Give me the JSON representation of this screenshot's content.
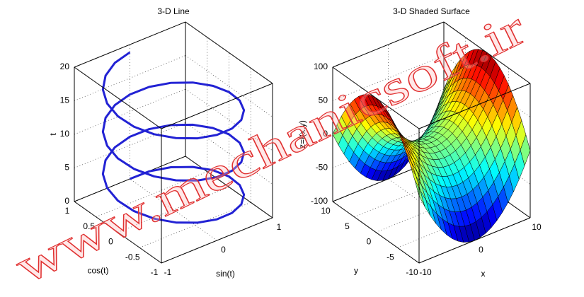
{
  "watermark": "www.mechanicsoft.ir",
  "chart_data": [
    {
      "type": "line3d",
      "title": "3-D Line",
      "xlabel": "sin(t)",
      "ylabel": "cos(t)",
      "zlabel": "t",
      "xlim": [
        -1,
        1
      ],
      "ylim": [
        -1,
        1
      ],
      "zlim": [
        0,
        20
      ],
      "xticks": [
        -1,
        0,
        1
      ],
      "yticks": [
        -1,
        -0.5,
        0,
        0.5,
        1
      ],
      "zticks": [
        0,
        5,
        10,
        15,
        20
      ],
      "grid": true,
      "series": [
        {
          "color": "#2222d4",
          "x": [
            0,
            0.309,
            0.588,
            0.809,
            0.951,
            1,
            0.951,
            0.809,
            0.588,
            0.309,
            0,
            -0.309,
            -0.588,
            -0.809,
            -0.951,
            -1,
            -0.951,
            -0.809,
            -0.588,
            -0.309,
            0,
            0.309,
            0.588,
            0.809,
            0.951,
            1,
            0.951,
            0.809,
            0.588,
            0.309,
            0,
            -0.309,
            -0.588,
            -0.809,
            -0.951,
            -1,
            -0.951,
            -0.809,
            -0.588,
            -0.309,
            0,
            0.309,
            0.588,
            0.809,
            0.951,
            1,
            0.951,
            0.809,
            0.588,
            0.309,
            0,
            -0.309,
            -0.588,
            -0.809,
            -0.951,
            -1,
            -0.951,
            -0.809,
            -0.588,
            -0.309,
            0
          ],
          "y": [
            1,
            0.951,
            0.809,
            0.588,
            0.309,
            0,
            -0.309,
            -0.588,
            -0.809,
            -0.951,
            -1,
            -0.951,
            -0.809,
            -0.588,
            -0.309,
            0,
            0.309,
            0.588,
            0.809,
            0.951,
            1,
            0.951,
            0.809,
            0.588,
            0.309,
            0,
            -0.309,
            -0.588,
            -0.809,
            -0.951,
            -1,
            -0.951,
            -0.809,
            -0.588,
            -0.309,
            0,
            0.309,
            0.588,
            0.809,
            0.951,
            1,
            0.951,
            0.809,
            0.588,
            0.309,
            0,
            -0.309,
            -0.588,
            -0.809,
            -0.951,
            -1,
            -0.951,
            -0.809,
            -0.588,
            -0.309,
            0,
            0.309,
            0.588,
            0.809,
            0.951,
            1
          ],
          "z": [
            0,
            0.31,
            0.63,
            0.94,
            1.26,
            1.57,
            1.88,
            2.2,
            2.51,
            2.83,
            3.14,
            3.46,
            3.77,
            4.08,
            4.4,
            4.71,
            5.03,
            5.34,
            5.65,
            5.97,
            6.28,
            6.6,
            6.91,
            7.23,
            7.54,
            7.85,
            8.17,
            8.48,
            8.8,
            9.11,
            9.42,
            9.74,
            10.05,
            10.37,
            10.68,
            11,
            11.31,
            11.62,
            11.94,
            12.25,
            12.57,
            12.88,
            13.19,
            13.51,
            13.82,
            14.14,
            14.45,
            14.77,
            15.08,
            15.39,
            15.71,
            16.02,
            16.34,
            16.65,
            16.96,
            17.28,
            17.59,
            17.91,
            18.22,
            18.54,
            18.85
          ]
        }
      ]
    },
    {
      "type": "surface",
      "title": "3-D Shaded Surface",
      "xlabel": "x",
      "ylabel": "y",
      "zlabel": "z=f(x,y)",
      "xlim": [
        -10,
        10
      ],
      "ylim": [
        -10,
        10
      ],
      "zlim": [
        -100,
        100
      ],
      "xticks": [
        -10,
        0,
        10
      ],
      "yticks": [
        -10,
        -5,
        0,
        5,
        10
      ],
      "zticks": [
        -100,
        -50,
        0,
        50,
        100
      ],
      "grid": true,
      "x": [
        -10,
        -9,
        -8,
        -7,
        -6,
        -5,
        -4,
        -3,
        -2,
        -1,
        0,
        1,
        2,
        3,
        4,
        5,
        6,
        7,
        8,
        9,
        10
      ],
      "y": [
        -10,
        -9,
        -8,
        -7,
        -6,
        -5,
        -4,
        -3,
        -2,
        -1,
        0,
        1,
        2,
        3,
        4,
        5,
        6,
        7,
        8,
        9,
        10
      ],
      "z": [
        [
          0,
          -19,
          -36,
          -51,
          -64,
          -75,
          -84,
          -91,
          -96,
          -99,
          -100,
          -99,
          -96,
          -91,
          -84,
          -75,
          -64,
          -51,
          -36,
          -19,
          0
        ],
        [
          19,
          0,
          -17,
          -32,
          -45,
          -56,
          -65,
          -72,
          -77,
          -80,
          -81,
          -80,
          -77,
          -72,
          -65,
          -56,
          -45,
          -32,
          -17,
          0,
          19
        ],
        [
          36,
          17,
          0,
          -15,
          -28,
          -39,
          -48,
          -55,
          -60,
          -63,
          -64,
          -63,
          -60,
          -55,
          -48,
          -39,
          -28,
          -15,
          0,
          17,
          36
        ],
        [
          51,
          32,
          15,
          0,
          -13,
          -24,
          -33,
          -40,
          -45,
          -48,
          -49,
          -48,
          -45,
          -40,
          -33,
          -24,
          -13,
          0,
          15,
          32,
          51
        ],
        [
          64,
          45,
          28,
          13,
          0,
          -11,
          -20,
          -27,
          -32,
          -35,
          -36,
          -35,
          -32,
          -27,
          -20,
          -11,
          0,
          13,
          28,
          45,
          64
        ],
        [
          75,
          56,
          39,
          24,
          11,
          0,
          -9,
          -16,
          -21,
          -24,
          -25,
          -24,
          -21,
          -16,
          -9,
          0,
          11,
          24,
          39,
          56,
          75
        ],
        [
          84,
          65,
          48,
          33,
          20,
          9,
          0,
          -7,
          -12,
          -15,
          -16,
          -15,
          -12,
          -7,
          0,
          9,
          20,
          33,
          48,
          65,
          84
        ],
        [
          91,
          72,
          55,
          40,
          27,
          16,
          7,
          0,
          -5,
          -8,
          -9,
          -8,
          -5,
          0,
          7,
          16,
          27,
          40,
          55,
          72,
          91
        ],
        [
          96,
          77,
          60,
          45,
          32,
          21,
          12,
          5,
          0,
          -3,
          -4,
          -3,
          0,
          5,
          12,
          21,
          32,
          45,
          60,
          77,
          96
        ],
        [
          99,
          80,
          63,
          48,
          35,
          24,
          15,
          8,
          3,
          0,
          -1,
          0,
          3,
          8,
          15,
          24,
          35,
          48,
          63,
          80,
          99
        ],
        [
          100,
          81,
          64,
          49,
          36,
          25,
          16,
          9,
          4,
          1,
          0,
          1,
          4,
          9,
          16,
          25,
          36,
          49,
          64,
          81,
          100
        ],
        [
          99,
          80,
          63,
          48,
          35,
          24,
          15,
          8,
          3,
          0,
          -1,
          0,
          3,
          8,
          15,
          24,
          35,
          48,
          63,
          80,
          99
        ],
        [
          96,
          77,
          60,
          45,
          32,
          21,
          12,
          5,
          0,
          -3,
          -4,
          -3,
          0,
          5,
          12,
          21,
          32,
          45,
          60,
          77,
          96
        ],
        [
          91,
          72,
          55,
          40,
          27,
          16,
          7,
          0,
          -5,
          -8,
          -9,
          -8,
          -5,
          0,
          7,
          16,
          27,
          40,
          55,
          72,
          91
        ],
        [
          84,
          65,
          48,
          33,
          20,
          9,
          0,
          -7,
          -12,
          -15,
          -16,
          -15,
          -12,
          -7,
          0,
          9,
          20,
          33,
          48,
          65,
          84
        ],
        [
          75,
          56,
          39,
          24,
          11,
          0,
          -9,
          -16,
          -21,
          -24,
          -25,
          -24,
          -21,
          -16,
          -9,
          0,
          11,
          24,
          39,
          56,
          75
        ],
        [
          64,
          45,
          28,
          13,
          0,
          -11,
          -20,
          -27,
          -32,
          -35,
          -36,
          -35,
          -32,
          -27,
          -20,
          -11,
          0,
          13,
          28,
          45,
          64
        ],
        [
          51,
          32,
          15,
          0,
          -13,
          -24,
          -33,
          -40,
          -45,
          -48,
          -49,
          -48,
          -45,
          -40,
          -33,
          -24,
          -13,
          0,
          15,
          32,
          51
        ],
        [
          36,
          17,
          0,
          -15,
          -28,
          -39,
          -48,
          -55,
          -60,
          -63,
          -64,
          -63,
          -60,
          -55,
          -48,
          -39,
          -28,
          -15,
          0,
          17,
          36
        ],
        [
          19,
          0,
          -17,
          -32,
          -45,
          -56,
          -65,
          -72,
          -77,
          -80,
          -81,
          -80,
          -77,
          -72,
          -65,
          -56,
          -45,
          -32,
          -17,
          0,
          19
        ],
        [
          0,
          -19,
          -36,
          -51,
          -64,
          -75,
          -84,
          -91,
          -96,
          -99,
          -100,
          -99,
          -96,
          -91,
          -84,
          -75,
          -64,
          -51,
          -36,
          -19,
          0
        ]
      ]
    }
  ]
}
